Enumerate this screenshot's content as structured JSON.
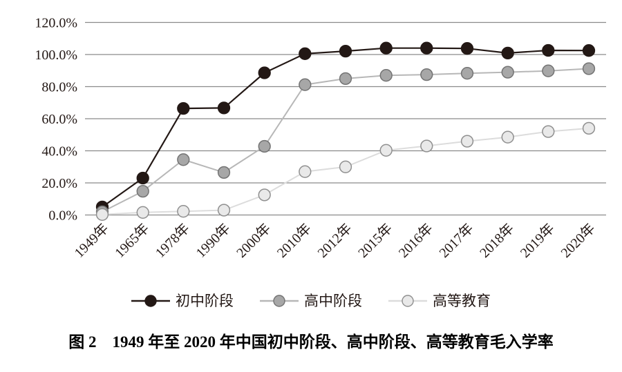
{
  "figure": {
    "caption": "图 2　1949 年至 2020 年中国初中阶段、高中阶段、高等教育毛入学率"
  },
  "chart_data": {
    "type": "line",
    "title": "图2 1949年至2020年中国初中阶段、高中阶段、高等教育毛入学率",
    "xlabel": "",
    "ylabel": "",
    "categories": [
      "1949年",
      "1965年",
      "1978年",
      "1990年",
      "2000年",
      "2010年",
      "2012年",
      "2015年",
      "2016年",
      "2017年",
      "2018年",
      "2019年",
      "2020年"
    ],
    "series": [
      {
        "id": "junior-secondary",
        "name": "初中阶段",
        "values": [
          5.0,
          23.0,
          66.4,
          66.7,
          88.6,
          100.5,
          102.1,
          104.0,
          104.0,
          103.8,
          100.9,
          102.6,
          102.5
        ],
        "line_color": "#231815",
        "line_width": 2.2,
        "marker_fill": "#231815",
        "marker_stroke": "#231815"
      },
      {
        "id": "senior-secondary",
        "name": "高中阶段",
        "values": [
          2.0,
          14.8,
          34.5,
          26.5,
          42.8,
          81.2,
          85.0,
          87.0,
          87.5,
          88.3,
          89.0,
          89.8,
          91.2
        ],
        "line_color": "#b7b7b7",
        "line_width": 2.0,
        "marker_fill": "#a7a7a7",
        "marker_stroke": "#737373"
      },
      {
        "id": "higher-education",
        "name": "高等教育",
        "values": [
          0.3,
          1.6,
          2.3,
          3.0,
          12.5,
          27.0,
          30.0,
          40.3,
          43.0,
          46.0,
          48.5,
          52.0,
          54.0
        ],
        "line_color": "#dcdcdc",
        "line_width": 2.0,
        "marker_fill": "#e9e9e9",
        "marker_stroke": "#8f8f8f"
      }
    ],
    "ylim": [
      0,
      120
    ],
    "ytick_step": 20,
    "ytick_labels": [
      "0.0%",
      "20.0%",
      "40.0%",
      "60.0%",
      "80.0%",
      "100.0%",
      "120.0%"
    ],
    "grid": true,
    "legend_position": "bottom",
    "style": {
      "grid_color": "#8a8a8a",
      "text_color": "#231815"
    }
  }
}
